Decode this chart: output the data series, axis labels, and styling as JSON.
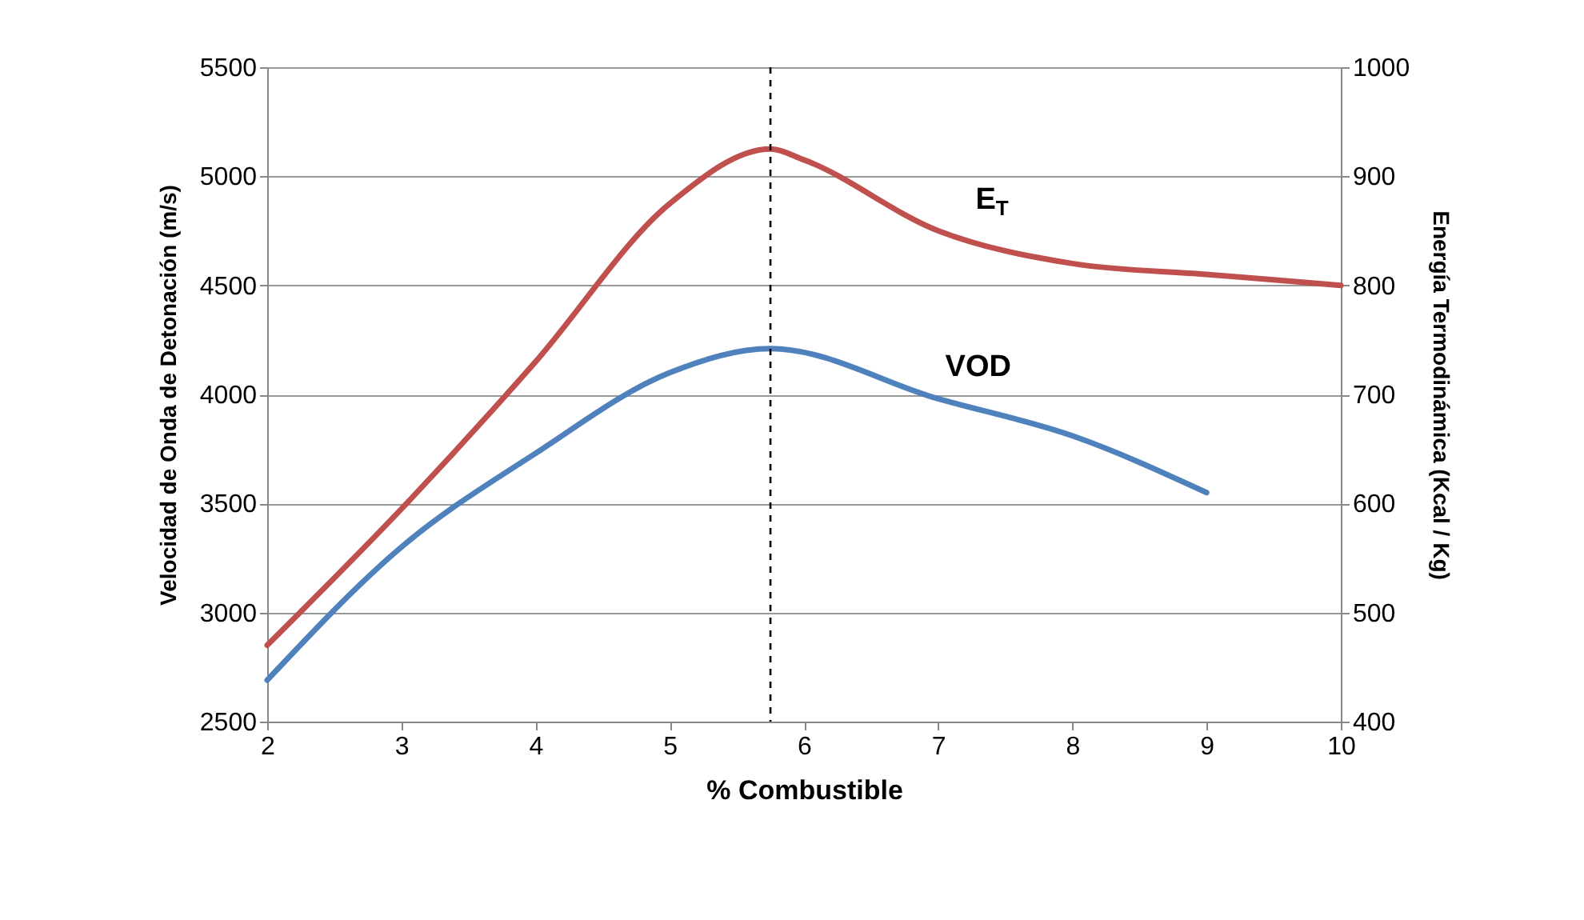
{
  "chart_data": {
    "type": "line",
    "xlabel": "% Combustible",
    "ylabel": "Velocidad de Onda de Detonación (m/s)",
    "y2label": "Energía Termodinámica (Kcal / Kg)",
    "xlim": [
      2,
      10
    ],
    "xticks": [
      2,
      3,
      4,
      5,
      6,
      7,
      8,
      9,
      10
    ],
    "ylim": [
      2500,
      5500
    ],
    "yticks": [
      2500,
      3000,
      3500,
      4000,
      4500,
      5000,
      5500
    ],
    "y2lim": [
      400,
      1000
    ],
    "y2ticks": [
      400,
      500,
      600,
      700,
      800,
      900,
      1000
    ],
    "series": [
      {
        "name": "VOD",
        "color": "#4f81bd",
        "x": [
          2,
          3,
          4,
          5,
          5.75,
          7,
          8,
          9
        ],
        "values": [
          2690,
          3300,
          3730,
          4100,
          4210,
          3980,
          3810,
          3550
        ]
      },
      {
        "name": "E$_{T}$",
        "color": "#c0504d",
        "axis": "y2",
        "x": [
          2,
          3,
          4,
          5,
          5.75,
          6,
          7,
          8,
          9,
          10
        ],
        "values": [
          470,
          595,
          730,
          875,
          925,
          915,
          850,
          820,
          810,
          800
        ]
      }
    ],
    "ref_lines": [
      {
        "axis": "x",
        "value": 5.75,
        "color": "#000000",
        "line_style": "dashed"
      }
    ],
    "grid": "y",
    "marker": "none",
    "line_style": "solid"
  }
}
